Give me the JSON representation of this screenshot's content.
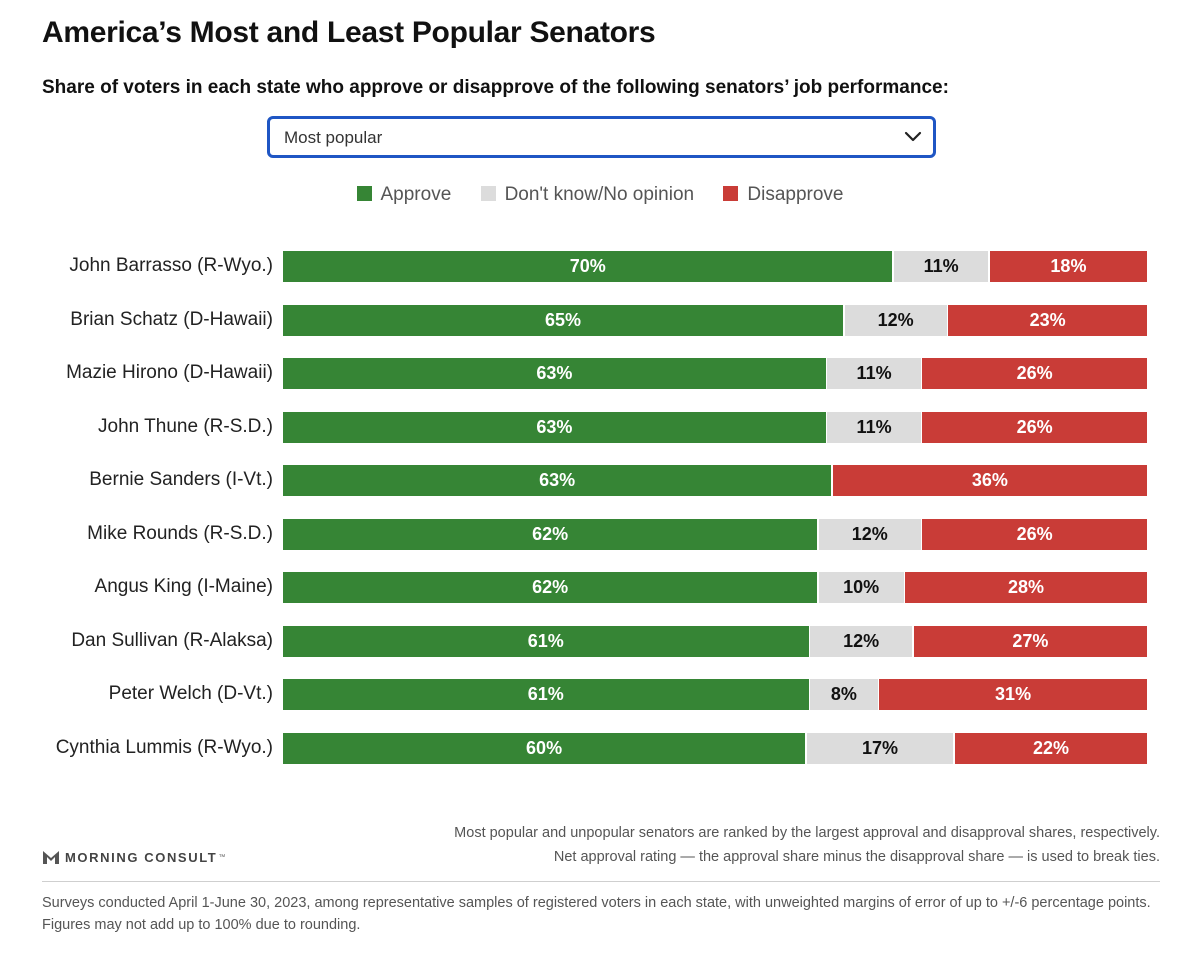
{
  "chart_data": {
    "type": "bar",
    "orientation": "horizontal",
    "stacked": true,
    "title": "America’s Most and Least Popular Senators",
    "subtitle": "Share of voters in each state who approve or disapprove of the following senators’ job performance:",
    "categories": [
      "John Barrasso (R-Wyo.)",
      "Brian Schatz (D-Hawaii)",
      "Mazie Hirono (D-Hawaii)",
      "John Thune (R-S.D.)",
      "Bernie Sanders (I-Vt.)",
      "Mike Rounds (R-S.D.)",
      "Angus King (I-Maine)",
      "Dan Sullivan (R-Alaksa)",
      "Peter Welch (D-Vt.)",
      "Cynthia Lummis (R-Wyo.)"
    ],
    "series": [
      {
        "name": "Approve",
        "color": "#368535",
        "values": [
          70,
          65,
          63,
          63,
          63,
          62,
          62,
          61,
          61,
          60
        ]
      },
      {
        "name": "Don't know/No opinion",
        "color": "#dcdcdc",
        "values": [
          11,
          12,
          11,
          11,
          0,
          12,
          10,
          12,
          8,
          17
        ]
      },
      {
        "name": "Disapprove",
        "color": "#c93c37",
        "values": [
          18,
          23,
          26,
          26,
          36,
          26,
          28,
          27,
          31,
          22
        ]
      }
    ],
    "value_suffix": "%",
    "xlim": [
      0,
      100
    ],
    "legend": "top-center",
    "grid": false
  },
  "dropdown": {
    "selected": "Most popular"
  },
  "notes": {
    "line1": "Most popular and unpopular senators are ranked by the largest approval and disapproval shares, respectively.",
    "line2": "Net approval rating — the approval share minus the disapproval share — is used to break ties."
  },
  "brand": {
    "name": "MORNING CONSULT",
    "mark": "™"
  },
  "footnote": "Surveys conducted April 1-June 30, 2023, among representative samples of registered voters in each state, with unweighted margins of error of up to +/-6 percentage points. Figures may not add up to 100% due to rounding."
}
